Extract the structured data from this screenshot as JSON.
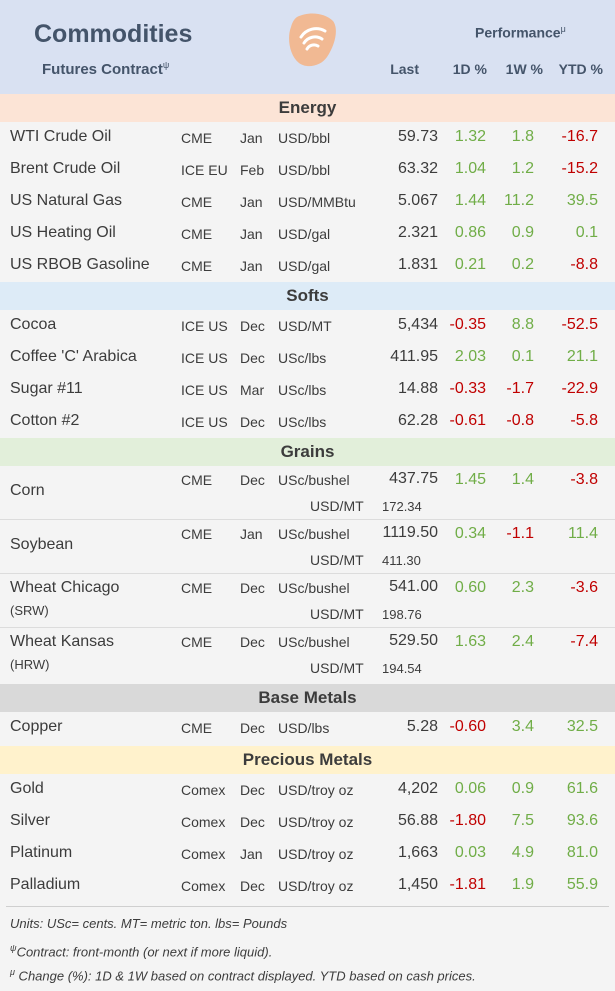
{
  "header": {
    "title": "Commodities",
    "subtitle": "Futures Contract",
    "subtitle_sup": "ψ",
    "performance": "Performance",
    "performance_sup": "μ",
    "col_last": "Last",
    "col_1d": "1D %",
    "col_1w": "1W %",
    "col_ytd": "YTD %"
  },
  "sections": [
    {
      "name": "Energy",
      "color": "#fce4d6",
      "rows": [
        {
          "name": "WTI Crude Oil",
          "exchange": "CME",
          "month": "Jan",
          "unit": "USD/bbl",
          "last": "59.73",
          "d1": "1.32",
          "w1": "1.8",
          "ytd": "-16.7"
        },
        {
          "name": "Brent Crude Oil",
          "exchange": "ICE EU",
          "month": "Feb",
          "unit": "USD/bbl",
          "last": "63.32",
          "d1": "1.04",
          "w1": "1.2",
          "ytd": "-15.2"
        },
        {
          "name": "US Natural Gas",
          "exchange": "CME",
          "month": "Jan",
          "unit": "USD/MMBtu",
          "last": "5.067",
          "d1": "1.44",
          "w1": "11.2",
          "ytd": "39.5"
        },
        {
          "name": "US Heating Oil",
          "exchange": "CME",
          "month": "Jan",
          "unit": "USD/gal",
          "last": "2.321",
          "d1": "0.86",
          "w1": "0.9",
          "ytd": "0.1"
        },
        {
          "name": "US RBOB Gasoline",
          "exchange": "CME",
          "month": "Jan",
          "unit": "USD/gal",
          "last": "1.831",
          "d1": "0.21",
          "w1": "0.2",
          "ytd": "-8.8"
        }
      ]
    },
    {
      "name": "Softs",
      "color": "#ddebf7",
      "rows": [
        {
          "name": "Cocoa",
          "exchange": "ICE US",
          "month": "Dec",
          "unit": "USD/MT",
          "last": "5,434",
          "d1": "-0.35",
          "w1": "8.8",
          "ytd": "-52.5"
        },
        {
          "name": "Coffee 'C' Arabica",
          "exchange": "ICE US",
          "month": "Dec",
          "unit": "USc/lbs",
          "last": "411.95",
          "d1": "2.03",
          "w1": "0.1",
          "ytd": "21.1"
        },
        {
          "name": "Sugar #11",
          "exchange": "ICE US",
          "month": "Mar",
          "unit": "USc/lbs",
          "last": "14.88",
          "d1": "-0.33",
          "w1": "-1.7",
          "ytd": "-22.9"
        },
        {
          "name": "Cotton #2",
          "exchange": "ICE US",
          "month": "Dec",
          "unit": "USc/lbs",
          "last": "62.28",
          "d1": "-0.61",
          "w1": "-0.8",
          "ytd": "-5.8"
        }
      ]
    },
    {
      "name": "Grains",
      "color": "#e2efda",
      "rows": [
        {
          "name": "Corn",
          "sub": "",
          "exchange": "CME",
          "month": "Dec",
          "unit": "USc/bushel",
          "last": "437.75",
          "unit2": "USD/MT",
          "last2": "172.34",
          "d1": "1.45",
          "w1": "1.4",
          "ytd": "-3.8"
        },
        {
          "name": "Soybean",
          "sub": "",
          "exchange": "CME",
          "month": "Jan",
          "unit": "USc/bushel",
          "last": "1119.50",
          "unit2": "USD/MT",
          "last2": "411.30",
          "d1": "0.34",
          "w1": "-1.1",
          "ytd": "11.4"
        },
        {
          "name": "Wheat Chicago",
          "sub": "(SRW)",
          "exchange": "CME",
          "month": "Dec",
          "unit": "USc/bushel",
          "last": "541.00",
          "unit2": "USD/MT",
          "last2": "198.76",
          "d1": "0.60",
          "w1": "2.3",
          "ytd": "-3.6"
        },
        {
          "name": "Wheat Kansas",
          "sub": "(HRW)",
          "exchange": "CME",
          "month": "Dec",
          "unit": "USc/bushel",
          "last": "529.50",
          "unit2": "USD/MT",
          "last2": "194.54",
          "d1": "1.63",
          "w1": "2.4",
          "ytd": "-7.4"
        }
      ]
    },
    {
      "name": "Base Metals",
      "color": "#d9d9d9",
      "rows": [
        {
          "name": "Copper",
          "exchange": "CME",
          "month": "Dec",
          "unit": "USD/lbs",
          "last": "5.28",
          "d1": "-0.60",
          "w1": "3.4",
          "ytd": "32.5"
        }
      ]
    },
    {
      "name": "Precious Metals",
      "color": "#fff2cc",
      "rows": [
        {
          "name": "Gold",
          "exchange": "Comex",
          "month": "Dec",
          "unit": "USD/troy oz",
          "last": "4,202",
          "d1": "0.06",
          "w1": "0.9",
          "ytd": "61.6"
        },
        {
          "name": "Silver",
          "exchange": "Comex",
          "month": "Dec",
          "unit": "USD/troy oz",
          "last": "56.88",
          "d1": "-1.80",
          "w1": "7.5",
          "ytd": "93.6"
        },
        {
          "name": "Platinum",
          "exchange": "Comex",
          "month": "Jan",
          "unit": "USD/troy oz",
          "last": "1,663",
          "d1": "0.03",
          "w1": "4.9",
          "ytd": "81.0"
        },
        {
          "name": "Palladium",
          "exchange": "Comex",
          "month": "Dec",
          "unit": "USD/troy oz",
          "last": "1,450",
          "d1": "-1.81",
          "w1": "1.9",
          "ytd": "55.9"
        }
      ]
    }
  ],
  "notes": {
    "units": "Units: USc= cents.  MT= metric ton.  lbs= Pounds",
    "contract_sup": "ψ",
    "contract": "Contract: front-month (or next if more liquid).",
    "change_sup": "μ",
    "change": " Change (%): 1D & 1W based on contract displayed. YTD based on cash prices."
  },
  "colors": {
    "header_bg": "#d9e1f2",
    "positive": "#70ad47",
    "negative": "#c00000",
    "logo": "#f4b183"
  }
}
